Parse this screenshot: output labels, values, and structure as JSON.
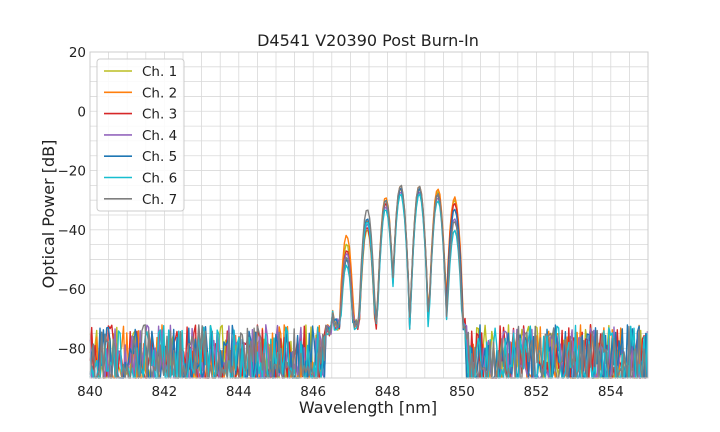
{
  "chart_data": {
    "type": "line",
    "title": "D4541 V20390 Post Burn-In",
    "xlabel": "Wavelength [nm]",
    "ylabel": "Optical Power [dB]",
    "xlim": [
      840,
      855
    ],
    "ylim": [
      -90,
      20
    ],
    "xticks": [
      "840",
      "842",
      "844",
      "846",
      "848",
      "850",
      "852",
      "854"
    ],
    "yticks": [
      "20",
      "0",
      "−20",
      "−40",
      "−60",
      "−80"
    ],
    "grid": true,
    "legend_position": "top-left",
    "noise_floor_range_db": [
      -90,
      -72
    ],
    "spectrum_band_nm": [
      846.5,
      850.1
    ],
    "series": [
      {
        "name": "Ch. 1",
        "color": "#bcbd22",
        "peaks": [
          [
            846.45,
            -64
          ],
          [
            846.9,
            -45
          ],
          [
            847.45,
            -40
          ],
          [
            847.95,
            -30
          ],
          [
            848.35,
            -26
          ],
          [
            848.85,
            -26
          ],
          [
            849.35,
            -27
          ],
          [
            849.8,
            -30
          ]
        ]
      },
      {
        "name": "Ch. 2",
        "color": "#ff7f0e",
        "peaks": [
          [
            846.45,
            -63
          ],
          [
            846.9,
            -42
          ],
          [
            847.45,
            -37
          ],
          [
            847.95,
            -29
          ],
          [
            848.35,
            -25
          ],
          [
            848.85,
            -25
          ],
          [
            849.35,
            -26
          ],
          [
            849.8,
            -29
          ]
        ]
      },
      {
        "name": "Ch. 3",
        "color": "#d62728",
        "peaks": [
          [
            846.45,
            -64
          ],
          [
            846.9,
            -47
          ],
          [
            847.45,
            -39
          ],
          [
            847.95,
            -31
          ],
          [
            848.35,
            -26
          ],
          [
            848.85,
            -27
          ],
          [
            849.35,
            -28
          ],
          [
            849.8,
            -31
          ]
        ]
      },
      {
        "name": "Ch. 4",
        "color": "#9467bd",
        "peaks": [
          [
            846.45,
            -65
          ],
          [
            846.9,
            -48
          ],
          [
            847.45,
            -38
          ],
          [
            847.95,
            -32
          ],
          [
            848.35,
            -27
          ],
          [
            848.85,
            -27
          ],
          [
            849.35,
            -29
          ],
          [
            849.8,
            -36
          ]
        ]
      },
      {
        "name": "Ch. 5",
        "color": "#1f77b4",
        "peaks": [
          [
            846.45,
            -64
          ],
          [
            846.9,
            -50
          ],
          [
            847.45,
            -36
          ],
          [
            847.95,
            -30
          ],
          [
            848.35,
            -26
          ],
          [
            848.85,
            -26
          ],
          [
            849.35,
            -28
          ],
          [
            849.8,
            -33
          ]
        ]
      },
      {
        "name": "Ch. 6",
        "color": "#17becf",
        "peaks": [
          [
            846.45,
            -63
          ],
          [
            846.9,
            -52
          ],
          [
            847.45,
            -37
          ],
          [
            847.95,
            -33
          ],
          [
            848.35,
            -28
          ],
          [
            848.85,
            -28
          ],
          [
            849.35,
            -30
          ],
          [
            849.8,
            -40
          ]
        ]
      },
      {
        "name": "Ch. 7",
        "color": "#7f7f7f",
        "peaks": [
          [
            846.45,
            -64
          ],
          [
            846.9,
            -49
          ],
          [
            847.45,
            -33
          ],
          [
            847.95,
            -30
          ],
          [
            848.35,
            -25
          ],
          [
            848.85,
            -25
          ],
          [
            849.35,
            -28
          ],
          [
            849.8,
            -37
          ]
        ]
      }
    ]
  }
}
